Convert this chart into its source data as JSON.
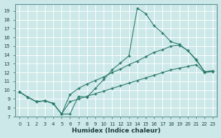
{
  "xlabel": "Humidex (Indice chaleur)",
  "ylabel": "",
  "bg_color": "#cce8e8",
  "grid_color": "#b0d4d4",
  "line_color": "#2a7a6a",
  "xlim": [
    -0.5,
    23.5
  ],
  "ylim": [
    7,
    19.8
  ],
  "xticks": [
    0,
    1,
    2,
    3,
    4,
    5,
    6,
    7,
    8,
    9,
    10,
    11,
    12,
    13,
    14,
    15,
    16,
    17,
    18,
    19,
    20,
    21,
    22,
    23
  ],
  "yticks": [
    7,
    8,
    9,
    10,
    11,
    12,
    13,
    14,
    15,
    16,
    17,
    18,
    19
  ],
  "line1_x": [
    0,
    1,
    2,
    3,
    4,
    5,
    6,
    7,
    8,
    9,
    10,
    11,
    12,
    13,
    14,
    15,
    16,
    17,
    18,
    19,
    20,
    21,
    22,
    23
  ],
  "line1_y": [
    9.8,
    9.2,
    8.7,
    8.8,
    8.5,
    7.3,
    7.3,
    9.3,
    9.2,
    10.2,
    11.2,
    12.3,
    13.1,
    13.9,
    19.3,
    18.7,
    17.3,
    16.5,
    15.5,
    15.2,
    14.5,
    13.4,
    12.1,
    12.2
  ],
  "line2_x": [
    0,
    1,
    2,
    3,
    4,
    5,
    6,
    7,
    8,
    9,
    10,
    11,
    12,
    13,
    14,
    15,
    16,
    17,
    18,
    19,
    20,
    21,
    22,
    23
  ],
  "line2_y": [
    9.8,
    9.2,
    8.7,
    8.8,
    8.5,
    7.3,
    9.5,
    10.2,
    10.7,
    11.1,
    11.5,
    12.0,
    12.4,
    12.9,
    13.3,
    13.8,
    14.3,
    14.6,
    15.0,
    15.1,
    14.5,
    13.5,
    12.1,
    12.2
  ],
  "line3_x": [
    0,
    1,
    2,
    3,
    4,
    5,
    6,
    7,
    8,
    9,
    10,
    11,
    12,
    13,
    14,
    15,
    16,
    17,
    18,
    19,
    20,
    21,
    22,
    23
  ],
  "line3_y": [
    9.8,
    9.2,
    8.7,
    8.8,
    8.5,
    7.3,
    8.7,
    9.0,
    9.3,
    9.6,
    9.9,
    10.2,
    10.5,
    10.8,
    11.1,
    11.4,
    11.7,
    12.0,
    12.3,
    12.5,
    12.7,
    12.9,
    12.0,
    12.1
  ],
  "xlabel_fontsize": 6.5,
  "tick_fontsize": 5.0
}
